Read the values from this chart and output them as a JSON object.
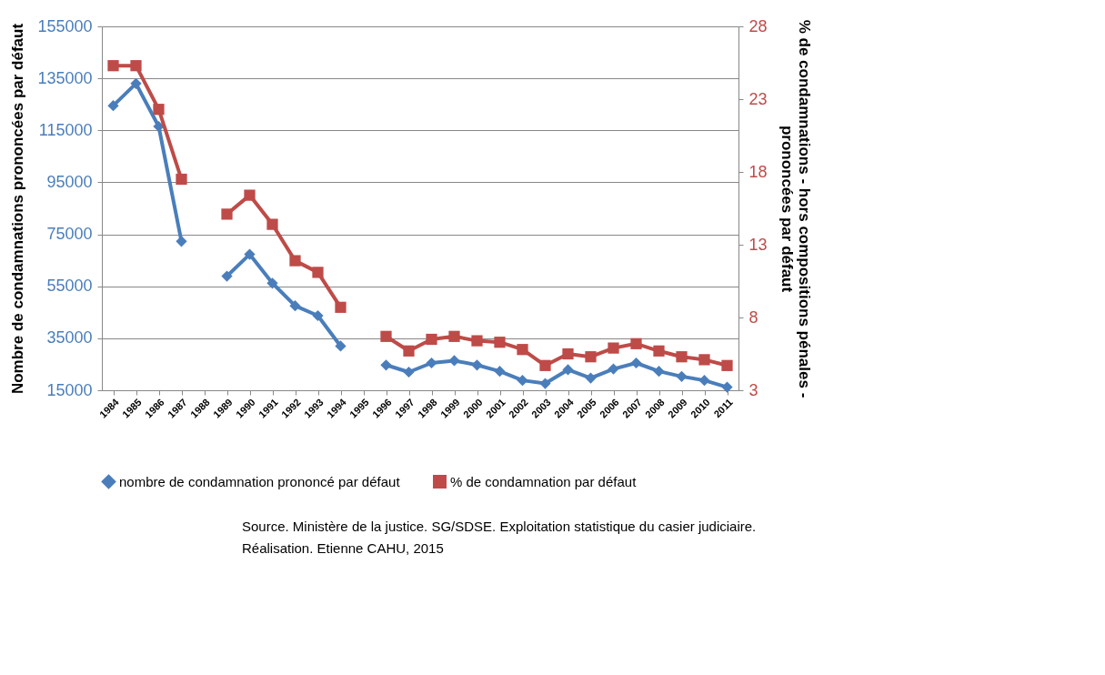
{
  "chart_data": {
    "type": "line",
    "categories": [
      "1984",
      "1985",
      "1986",
      "1987",
      "1988",
      "1989",
      "1990",
      "1991",
      "1992",
      "1993",
      "1994",
      "1995",
      "1996",
      "1997",
      "1998",
      "1999",
      "2000",
      "2001",
      "2002",
      "2003",
      "2004",
      "2005",
      "2006",
      "2007",
      "2008",
      "2009",
      "2010",
      "2011"
    ],
    "series": [
      {
        "name": "nombre de condamnation prononcé par défaut",
        "color": "#4a7ebb",
        "marker": "diamond",
        "values": [
          124500,
          133000,
          116500,
          72300,
          null,
          58900,
          67300,
          56200,
          47500,
          43700,
          32000,
          null,
          24700,
          22000,
          25500,
          26400,
          24700,
          22300,
          18800,
          17600,
          22900,
          19700,
          23200,
          25500,
          22300,
          20300,
          18800,
          16200
        ]
      },
      {
        "name": "% de condamnation par défaut",
        "color": "#be4b48",
        "marker": "square",
        "axis": "y2",
        "values": [
          25.3,
          25.3,
          22.3,
          17.5,
          null,
          15.1,
          16.4,
          14.4,
          11.9,
          11.1,
          8.7,
          null,
          6.7,
          5.7,
          6.5,
          6.7,
          6.4,
          6.3,
          5.8,
          4.7,
          5.5,
          5.3,
          5.9,
          6.2,
          5.7,
          5.3,
          5.1,
          4.7
        ]
      }
    ],
    "ylabel": "Nombre de condamnations prononcées par défaut",
    "y2label": "% de condamnations - hors compositions pénales -\nprononcées par défaut",
    "ylim": [
      15000,
      155000
    ],
    "yticks": [
      15000,
      35000,
      55000,
      75000,
      95000,
      115000,
      135000,
      155000
    ],
    "y2lim": [
      3,
      28
    ],
    "y2ticks": [
      3,
      8,
      13,
      18,
      23,
      28
    ],
    "grid": "y",
    "legend": "bottom",
    "line_style": "solid",
    "annotations": [
      "Source. Ministère de la justice. SG/SDSE. Exploitation statistique du casier judiciaire.",
      "Réalisation. Etienne CAHU, 2015"
    ]
  }
}
